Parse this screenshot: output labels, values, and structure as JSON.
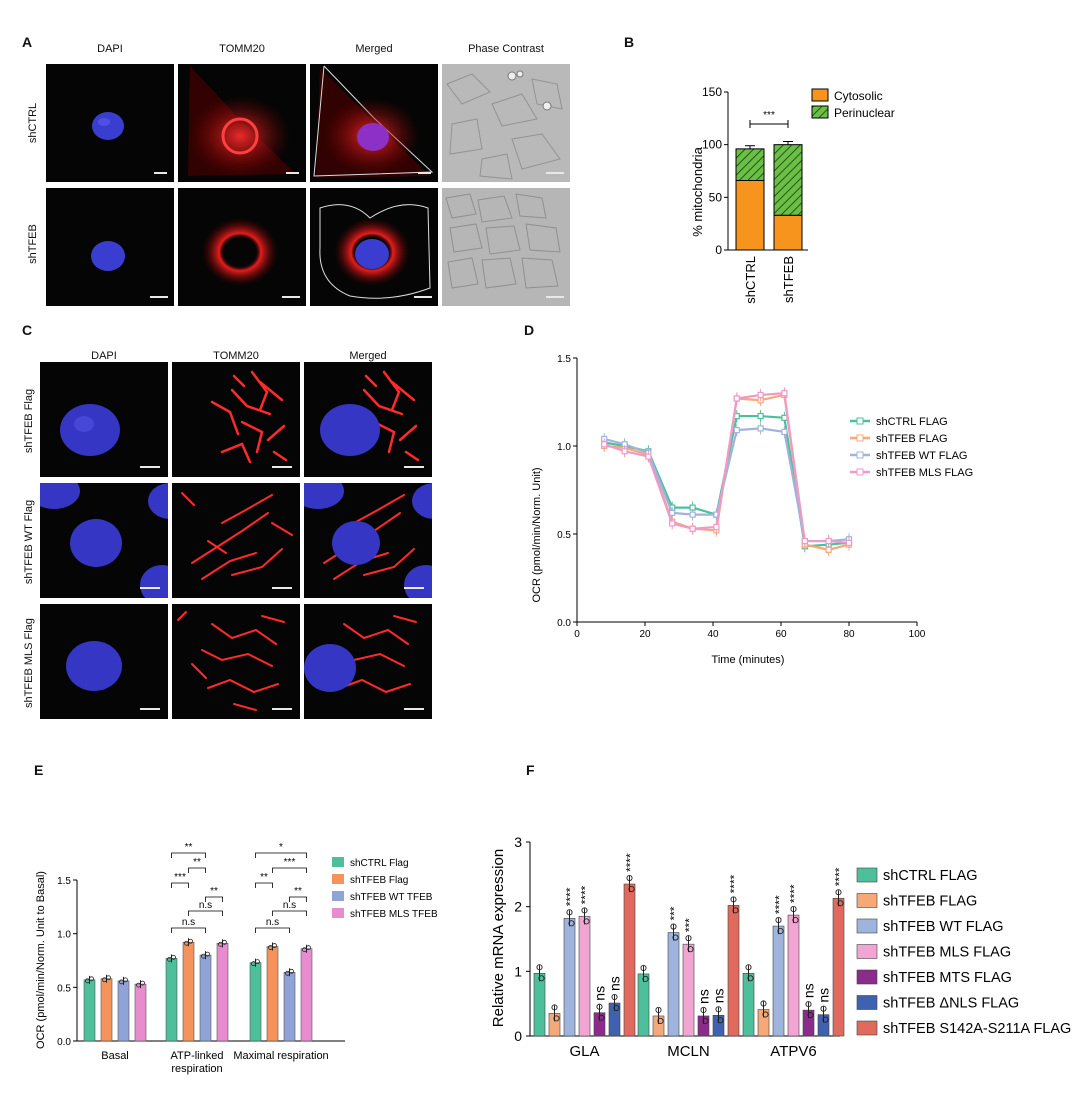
{
  "panelA": {
    "label": "A",
    "columns": [
      "DAPI",
      "TOMM20",
      "Merged",
      "Phase Contrast"
    ],
    "rows": [
      "shCTRL",
      "shTFEB"
    ]
  },
  "panelB": {
    "label": "B",
    "chart_data": {
      "type": "bar",
      "stacked": true,
      "categories": [
        "shCTRL",
        "shTFEB"
      ],
      "series": [
        {
          "name": "Cytosolic",
          "values": [
            66,
            33
          ],
          "color": "#f7941d"
        },
        {
          "name": "Perinuclear",
          "values": [
            30,
            67
          ],
          "color": "#6abf45"
        }
      ],
      "ylabel": "% mitochondria",
      "ylim": [
        0,
        150
      ],
      "yticks": [
        0,
        50,
        100,
        150
      ],
      "significance": "***",
      "legend_position": "top-right"
    }
  },
  "panelC": {
    "label": "C",
    "columns": [
      "DAPI",
      "TOMM20",
      "Merged"
    ],
    "rows": [
      "shTFEB Flag",
      "shTFEB WT Flag",
      "shTFEB MLS Flag"
    ]
  },
  "panelD": {
    "label": "D",
    "chart_data": {
      "type": "line",
      "xlabel": "Time (minutes)",
      "ylabel": "OCR (pmol/min/Norm. Unit)",
      "xlim": [
        0,
        100
      ],
      "ylim": [
        0,
        1.5
      ],
      "xticks": [
        0,
        20,
        40,
        60,
        80,
        100
      ],
      "yticks": [
        "0.0",
        "0.5",
        "1.0",
        "1.5"
      ],
      "x": [
        8,
        14,
        21,
        28,
        34,
        41,
        47,
        54,
        61,
        67,
        74,
        80
      ],
      "series": [
        {
          "name": "shCTRL FLAG",
          "color": "#4dbf9b",
          "values": [
            1.02,
            1.0,
            0.97,
            0.65,
            0.65,
            0.61,
            1.17,
            1.17,
            1.16,
            0.43,
            0.44,
            0.45
          ]
        },
        {
          "name": "shTFEB FLAG",
          "color": "#f5a878",
          "values": [
            1.0,
            0.99,
            0.95,
            0.57,
            0.53,
            0.52,
            1.27,
            1.26,
            1.29,
            0.44,
            0.41,
            0.44
          ]
        },
        {
          "name": "shTFEB WT FLAG",
          "color": "#9fb4dc",
          "values": [
            1.04,
            1.01,
            0.96,
            0.62,
            0.61,
            0.61,
            1.09,
            1.1,
            1.08,
            0.46,
            0.46,
            0.47
          ]
        },
        {
          "name": "shTFEB MLS FLAG",
          "color": "#ee9ac8",
          "values": [
            1.01,
            0.97,
            0.94,
            0.56,
            0.53,
            0.54,
            1.27,
            1.29,
            1.3,
            0.46,
            0.46,
            0.45
          ]
        }
      ],
      "legend_position": "right"
    }
  },
  "panelE": {
    "label": "E",
    "chart_data": {
      "type": "bar",
      "categories": [
        "Basal",
        "ATP-linked respiration",
        "Maximal respiration"
      ],
      "category_lines": [
        [
          "Basal"
        ],
        [
          "ATP-linked",
          "respiration"
        ],
        [
          "Maximal respiration"
        ]
      ],
      "ylabel": "OCR (pmol/min/Norm. Unit to Basal)",
      "ylim": [
        0,
        1.5
      ],
      "yticks": [
        "0.0",
        "0.5",
        "1.0",
        "1.5"
      ],
      "series": [
        {
          "name": "shCTRL Flag",
          "color": "#4dbf9b",
          "values": [
            0.57,
            0.77,
            0.73
          ]
        },
        {
          "name": "shTFEB Flag",
          "color": "#f5935a",
          "values": [
            0.58,
            0.92,
            0.88
          ]
        },
        {
          "name": "shTFEB WT TFEB",
          "color": "#8fa3d6",
          "values": [
            0.56,
            0.8,
            0.64
          ]
        },
        {
          "name": "shTFEB MLS TFEB",
          "color": "#e98ccf",
          "values": [
            0.53,
            0.91,
            0.86
          ]
        }
      ],
      "brackets": [
        {
          "category": 1,
          "from": 0,
          "to": 2,
          "label": "**"
        },
        {
          "category": 1,
          "from": 1,
          "to": 2,
          "label": "**"
        },
        {
          "category": 1,
          "from": 0,
          "to": 1,
          "label": "***"
        },
        {
          "category": 1,
          "from": 2,
          "to": 3,
          "label": "**"
        },
        {
          "category": 1,
          "from": 1,
          "to": 3,
          "label": "n.s"
        },
        {
          "category": 1,
          "from": 0,
          "to": 2,
          "label": "n.s"
        },
        {
          "category": 2,
          "from": 0,
          "to": 3,
          "label": "*"
        },
        {
          "category": 2,
          "from": 1,
          "to": 3,
          "label": "***"
        },
        {
          "category": 2,
          "from": 0,
          "to": 1,
          "label": "**"
        },
        {
          "category": 2,
          "from": 2,
          "to": 3,
          "label": "**"
        },
        {
          "category": 2,
          "from": 1,
          "to": 3,
          "label": "n.s"
        },
        {
          "category": 2,
          "from": 0,
          "to": 2,
          "label": "n.s"
        }
      ],
      "legend_position": "top-right"
    }
  },
  "panelF": {
    "label": "F",
    "chart_data": {
      "type": "bar",
      "categories": [
        "GLA",
        "MCLN",
        "ATPV6"
      ],
      "ylabel": "Relative mRNA expression",
      "ylim": [
        0,
        3
      ],
      "yticks": [
        0,
        1,
        2,
        3
      ],
      "series": [
        {
          "name": "shCTRL FLAG",
          "color": "#4dbf9b",
          "values": [
            0.97,
            0.96,
            0.97
          ],
          "labels": [
            "",
            "",
            ""
          ]
        },
        {
          "name": "shTFEB FLAG",
          "color": "#f5a878",
          "values": [
            0.35,
            0.31,
            0.41
          ],
          "labels": [
            "",
            "",
            ""
          ]
        },
        {
          "name": "shTFEB WT FLAG",
          "color": "#9fb4dc",
          "values": [
            1.82,
            1.6,
            1.7
          ],
          "labels": [
            "****",
            "***",
            "****"
          ]
        },
        {
          "name": "shTFEB MLS FLAG",
          "color": "#f2a4d3",
          "values": [
            1.85,
            1.42,
            1.87
          ],
          "labels": [
            "****",
            "***",
            "****"
          ]
        },
        {
          "name": "shTFEB MTS FLAG",
          "color": "#8b2c8c",
          "values": [
            0.36,
            0.31,
            0.4
          ],
          "labels": [
            "ns",
            "ns",
            "ns"
          ]
        },
        {
          "name": "shTFEB ΔNLS FLAG",
          "color": "#3f62b0",
          "values": [
            0.51,
            0.32,
            0.33
          ],
          "labels": [
            "ns",
            "ns",
            "ns"
          ]
        },
        {
          "name": "shTFEB S142A-S211A FLAG",
          "color": "#e06a5e",
          "values": [
            2.35,
            2.02,
            2.13
          ],
          "labels": [
            "****",
            "****",
            "****"
          ]
        }
      ],
      "legend_position": "right"
    }
  }
}
